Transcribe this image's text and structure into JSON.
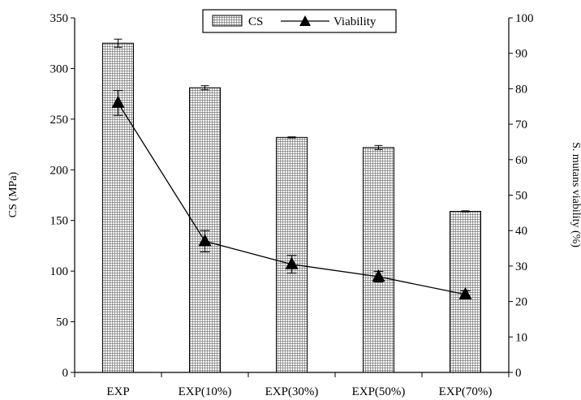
{
  "chart_data": {
    "type": "bar",
    "categories": [
      "EXP",
      "EXP(10%)",
      "EXP(30%)",
      "EXP(50%)",
      "EXP(70%)"
    ],
    "series": [
      {
        "name": "CS",
        "type": "bar",
        "axis": "left",
        "values": [
          325,
          281,
          232,
          222,
          159
        ],
        "errors": [
          4,
          2,
          0.5,
          2,
          0.5
        ]
      },
      {
        "name": "Viability",
        "type": "line",
        "axis": "right",
        "marker": "triangle",
        "values": [
          76,
          37,
          30.5,
          27,
          22
        ],
        "errors": [
          3.5,
          3,
          2.5,
          1.5,
          1
        ]
      }
    ],
    "ylabel": "CS (MPa)",
    "y2label": "S. mutans viability (%)",
    "ylim": [
      0,
      350
    ],
    "y2lim": [
      0,
      100
    ],
    "yticks": [
      0,
      50,
      100,
      150,
      200,
      250,
      300,
      350
    ],
    "y2ticks": [
      0,
      10,
      20,
      30,
      40,
      50,
      60,
      70,
      80,
      90,
      100
    ],
    "legend": "top-center",
    "grid": false
  }
}
